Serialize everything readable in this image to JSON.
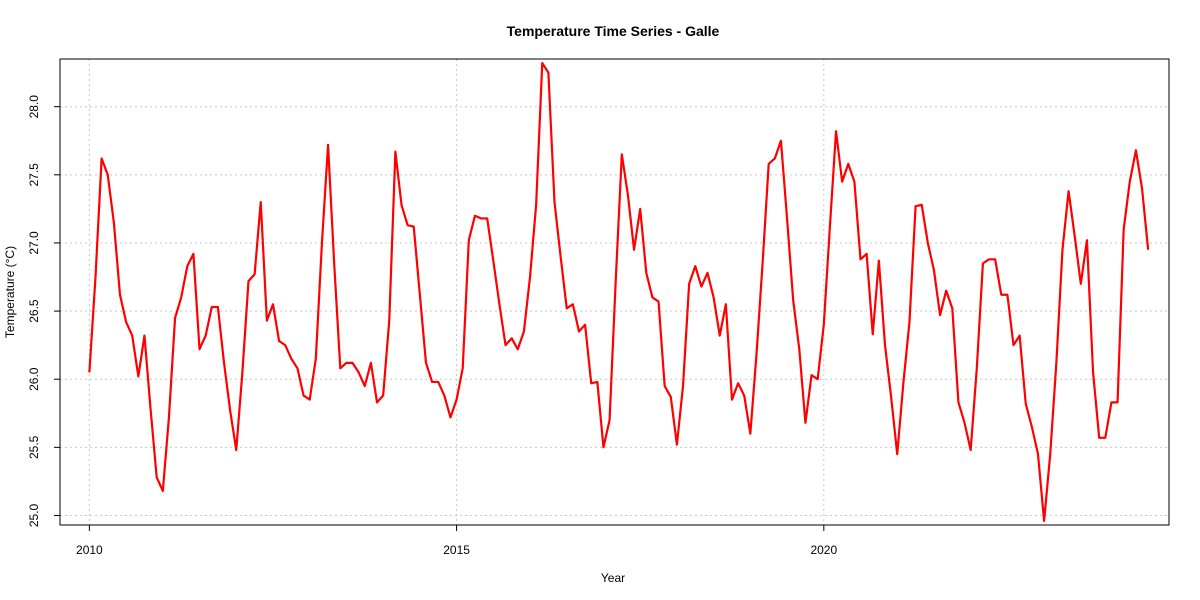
{
  "chart_data": {
    "type": "line",
    "title": "Temperature Time Series - Galle",
    "xlabel": "Year",
    "ylabel": "Temperature (°C)",
    "xlim": [
      2009.6,
      2024.7
    ],
    "ylim": [
      24.93,
      28.35
    ],
    "x_ticks": [
      2010,
      2015,
      2020
    ],
    "x_tick_labels": [
      "2010",
      "2015",
      "2020"
    ],
    "y_ticks": [
      25.0,
      25.5,
      26.0,
      26.5,
      27.0,
      27.5,
      28.0
    ],
    "y_tick_labels": [
      "25.0",
      "25.5",
      "26.0",
      "26.5",
      "27.0",
      "27.5",
      "28.0"
    ],
    "grid": true,
    "line_color": "#ff0000",
    "series": [
      {
        "values": [
          26.05,
          26.75,
          27.62,
          27.5,
          27.15,
          26.62,
          26.42,
          26.32,
          26.02,
          26.32,
          25.78,
          25.28,
          25.18,
          25.72,
          26.45,
          26.6,
          26.83,
          26.92,
          26.22,
          26.32,
          26.53,
          26.53,
          26.12,
          25.77,
          25.48,
          26.05,
          26.72,
          26.77,
          27.3,
          26.43,
          26.55,
          26.28,
          26.25,
          26.15,
          26.08,
          25.88,
          25.85,
          26.15,
          27.0,
          27.72,
          26.85,
          26.08,
          26.12,
          26.12,
          26.05,
          25.95,
          26.12,
          25.83,
          25.88,
          26.43,
          27.67,
          27.28,
          27.13,
          27.12,
          26.62,
          26.12,
          25.98,
          25.98,
          25.88,
          25.72,
          25.85,
          26.08,
          27.02,
          27.2,
          27.18,
          27.18,
          26.87,
          26.55,
          26.25,
          26.3,
          26.22,
          26.35,
          26.75,
          27.28,
          28.32,
          28.25,
          27.3,
          26.9,
          26.52,
          26.55,
          26.35,
          26.4,
          25.97,
          25.98,
          25.5,
          25.7,
          26.72,
          27.65,
          27.35,
          26.95,
          27.25,
          26.78,
          26.6,
          26.57,
          25.95,
          25.87,
          25.52,
          25.95,
          26.7,
          26.83,
          26.68,
          26.78,
          26.6,
          26.32,
          26.55,
          25.85,
          25.97,
          25.88,
          25.6,
          26.18,
          26.85,
          27.58,
          27.62,
          27.75,
          27.18,
          26.58,
          26.22,
          25.68,
          26.03,
          26.0,
          26.4,
          27.12,
          27.82,
          27.45,
          27.58,
          27.45,
          26.88,
          26.92,
          26.33,
          26.87,
          26.25,
          25.87,
          25.45,
          25.97,
          26.42,
          27.27,
          27.28,
          27.0,
          26.8,
          26.47,
          26.65,
          26.52,
          25.83,
          25.68,
          25.48,
          26.08,
          26.85,
          26.88,
          26.88,
          26.62,
          26.62,
          26.25,
          26.32,
          25.82,
          25.65,
          25.45,
          24.96,
          25.45,
          26.12,
          26.95,
          27.38,
          27.05,
          26.7,
          27.02,
          26.05,
          25.57,
          25.57,
          25.83,
          25.83,
          27.1,
          27.45,
          27.68,
          27.4,
          26.95
        ]
      }
    ],
    "x_start_year": 2010,
    "x_step": 0.08333
  }
}
